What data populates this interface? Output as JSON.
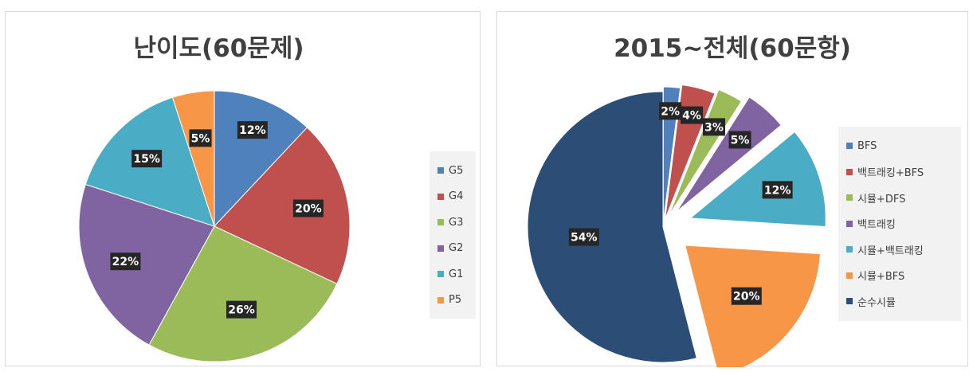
{
  "chart_data": [
    {
      "type": "pie",
      "title": "난이도(60문제)",
      "categories": [
        "G5",
        "G4",
        "G3",
        "G2",
        "G1",
        "P5"
      ],
      "values": [
        12,
        20,
        26,
        22,
        15,
        5
      ],
      "labels": [
        "12%",
        "20%",
        "26%",
        "22%",
        "15%",
        "5%"
      ],
      "colors": [
        "#4f81bd",
        "#c0504d",
        "#9bbb59",
        "#8064a2",
        "#4bacc6",
        "#f79646"
      ],
      "legend": "right",
      "exploded": false
    },
    {
      "type": "pie",
      "title": "2015~전체(60문항)",
      "categories": [
        "BFS",
        "백트래킹+BFS",
        "시뮬+DFS",
        "백트래킹",
        "시뮬+백트래킹",
        "시뮬+BFS",
        "순수시뮬"
      ],
      "values": [
        2,
        4,
        3,
        5,
        12,
        20,
        54
      ],
      "labels": [
        "2%",
        "4%",
        "3%",
        "5%",
        "12%",
        "20%",
        "54%"
      ],
      "colors": [
        "#4f81bd",
        "#c0504d",
        "#9bbb59",
        "#8064a2",
        "#4bacc6",
        "#f79646",
        "#2c4d75"
      ],
      "legend": "right",
      "exploded": true
    }
  ]
}
